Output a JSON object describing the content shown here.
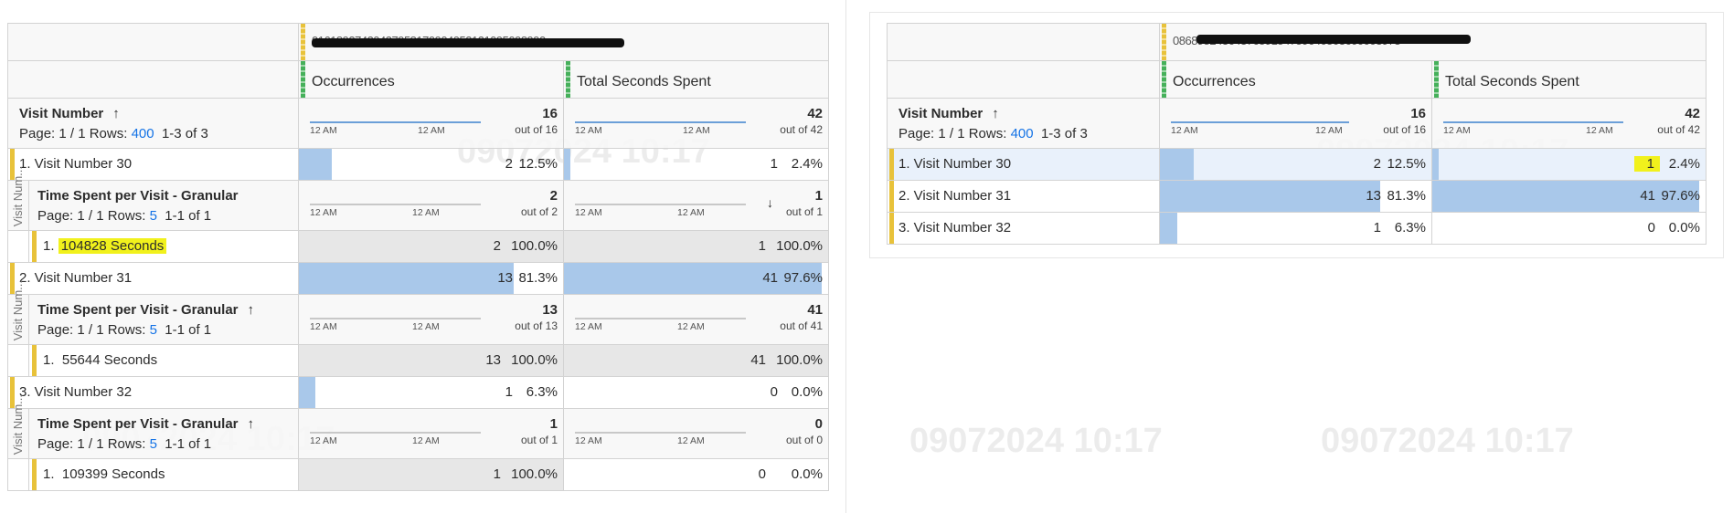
{
  "watermark": "09072024 10:17",
  "left": {
    "header_id": "01618927420437958170904052121095098990",
    "col1": "Occurrences",
    "col2": "Total Seconds Spent",
    "dim": {
      "title": "Visit Number",
      "sort": "↑",
      "page": "Page: 1 / 1 Rows:",
      "rows": "400",
      "range": "1-3 of 3",
      "tick_a": "12 AM",
      "tick_b": "12 AM",
      "occ_total": "16",
      "occ_outof": "out of 16",
      "sec_total": "42",
      "sec_outof": "out of 42"
    },
    "rows": [
      {
        "label": "1.  Visit Number 30",
        "occ": "2",
        "occ_pct": "12.5%",
        "sec": "1",
        "sec_pct": "2.4%",
        "sub": {
          "side": "Visit Num...",
          "title": "Time Spent per Visit - Granular",
          "sort": "",
          "page": "Page: 1 / 1 Rows:",
          "rows": "5",
          "range": "1-1 of 1",
          "occ_total": "2",
          "occ_outof": "out of 2",
          "sec_total": "1",
          "sec_outof": "out of 1",
          "sec_sort": "↓",
          "item_num": "1.",
          "item": "104828 Seconds",
          "occ": "2",
          "occ_pct": "100.0%",
          "sec": "1",
          "sec_pct": "100.0%"
        }
      },
      {
        "label": "2.  Visit Number 31",
        "occ": "13",
        "occ_pct": "81.3%",
        "sec": "41",
        "sec_pct": "97.6%",
        "sub": {
          "side": "Visit Num...",
          "title": "Time Spent per Visit - Granular",
          "sort": "↑",
          "page": "Page: 1 / 1 Rows:",
          "rows": "5",
          "range": "1-1 of 1",
          "occ_total": "13",
          "occ_outof": "out of 13",
          "sec_total": "41",
          "sec_outof": "out of 41",
          "sec_sort": "",
          "item_num": "1.",
          "item": "55644 Seconds",
          "occ": "13",
          "occ_pct": "100.0%",
          "sec": "41",
          "sec_pct": "100.0%"
        }
      },
      {
        "label": "3.  Visit Number 32",
        "occ": "1",
        "occ_pct": "6.3%",
        "sec": "0",
        "sec_pct": "0.0%",
        "sub": {
          "side": "Visit Num...",
          "title": "Time Spent per Visit - Granular",
          "sort": "↑",
          "page": "Page: 1 / 1 Rows:",
          "rows": "5",
          "range": "1-1 of 1",
          "occ_total": "1",
          "occ_outof": "out of 1",
          "sec_total": "0",
          "sec_outof": "out of 0",
          "sec_sort": "",
          "item_num": "1.",
          "item": "109399 Seconds",
          "occ": "1",
          "occ_pct": "100.0%",
          "sec": "0",
          "sec_pct": "0.0%"
        }
      }
    ]
  },
  "right": {
    "header_id": "0868982436437659154759640503600003973",
    "col1": "Occurrences",
    "col2": "Total Seconds Spent",
    "dim": {
      "title": "Visit Number",
      "sort": "↑",
      "page": "Page: 1 / 1 Rows:",
      "rows": "400",
      "range": "1-3 of 3",
      "tick_a": "12 AM",
      "tick_b": "12 AM",
      "occ_total": "16",
      "occ_outof": "out of 16",
      "sec_total": "42",
      "sec_outof": "out of 42"
    },
    "rows": [
      {
        "label": "1.  Visit Number 30",
        "occ": "2",
        "occ_pct": "12.5%",
        "sec": "1",
        "sec_pct": "2.4%"
      },
      {
        "label": "2.  Visit Number 31",
        "occ": "13",
        "occ_pct": "81.3%",
        "sec": "41",
        "sec_pct": "97.6%"
      },
      {
        "label": "3.  Visit Number 32",
        "occ": "1",
        "occ_pct": "6.3%",
        "sec": "0",
        "sec_pct": "0.0%"
      }
    ]
  }
}
